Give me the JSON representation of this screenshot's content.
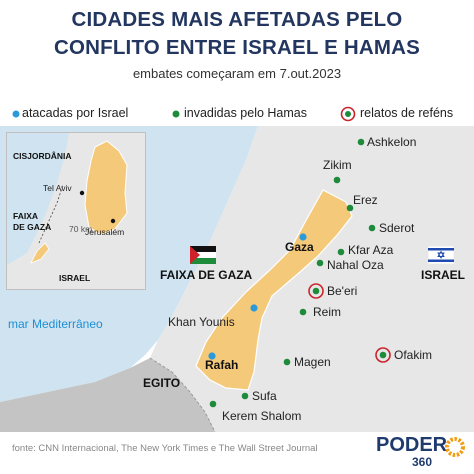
{
  "title": {
    "line1": "CIDADES MAIS AFETADAS PELO",
    "line2": "CONFLITO ENTRE ISRAEL E HAMAS"
  },
  "subtitle": "embates começaram em 7.out.2023",
  "legend": {
    "attacked": "atacadas por Israel",
    "invaded": "invadidas pelo Hamas",
    "hostages": "relatos de reféns"
  },
  "colors": {
    "title": "#23365f",
    "sea": "#cfe3f0",
    "land": "#e7e7e7",
    "gaza": "#f5c97a",
    "egypt": "#c4c4c4",
    "attacked_dot": "#2c9ad8",
    "invaded_dot": "#1e8b3a",
    "hostage_ring": "#c9252c",
    "logo_blue": "#1f3b6e",
    "logo_orange": "#f39c12"
  },
  "map": {
    "region_gaza": "FAIXA DE GAZA",
    "region_israel": "ISRAEL",
    "region_egypt": "EGITO",
    "sea": "mar Mediterrâneo",
    "flags": [
      "palestine-flag",
      "israel-flag"
    ],
    "cities": [
      {
        "name": "Ashkelon",
        "type": "invaded"
      },
      {
        "name": "Zikim",
        "type": "invaded"
      },
      {
        "name": "Erez",
        "type": "invaded"
      },
      {
        "name": "Sderot",
        "type": "invaded"
      },
      {
        "name": "Gaza",
        "type": "attacked"
      },
      {
        "name": "Kfar Aza",
        "type": "invaded"
      },
      {
        "name": "Nahal Oza",
        "type": "invaded"
      },
      {
        "name": "Be'eri",
        "type": "hostages"
      },
      {
        "name": "Reim",
        "type": "invaded"
      },
      {
        "name": "Khan Younis",
        "type": "attacked"
      },
      {
        "name": "Magen",
        "type": "invaded"
      },
      {
        "name": "Ofakim",
        "type": "hostages"
      },
      {
        "name": "Rafah",
        "type": "attacked"
      },
      {
        "name": "Sufa",
        "type": "invaded"
      },
      {
        "name": "Kerem Shalom",
        "type": "invaded"
      }
    ]
  },
  "inset": {
    "west_bank": "CISJORDÂNIA",
    "tel_aviv": "Tel Aviv",
    "jerusalem": "Jerusalém",
    "gaza_line1": "FAIXA",
    "gaza_line2": "DE GAZA",
    "distance": "70 km",
    "israel": "ISRAEL"
  },
  "source": "fonte: CNN Internacional, The New York Times e The Wall Street Journal",
  "logo": {
    "word": "PODER",
    "number": "360"
  }
}
